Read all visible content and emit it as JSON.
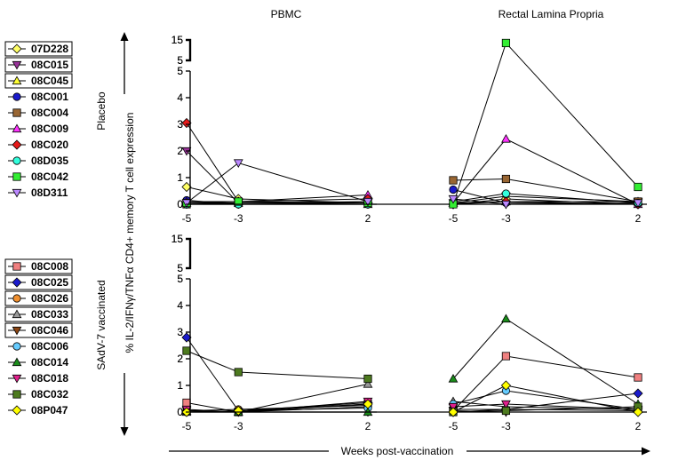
{
  "figure": {
    "ylabel": "% IL-2/IFNγ/TNFα CD4+ memory T cell expression",
    "xlabel": "Weeks post-vaccination",
    "col_titles": [
      "PBMC",
      "Rectal Lamina Propria"
    ],
    "row_labels": [
      "Placebo",
      "SAdV-7 vaccinated"
    ]
  },
  "chart_data": [
    {
      "type": "line",
      "panel": "PBMC / Placebo",
      "title": "PBMC",
      "group": "Placebo",
      "x": [
        -5,
        -3,
        2
      ],
      "x_tick_labels": [
        "-5",
        "-3",
        "2"
      ],
      "y_ticks": [
        0,
        1,
        2,
        3,
        4,
        5
      ],
      "y_break_ticks": [
        5,
        15
      ],
      "ylim": [
        0,
        15
      ],
      "series": [
        {
          "name": "07D228",
          "values": [
            0.65,
            0.2,
            0.05
          ]
        },
        {
          "name": "08C015",
          "values": [
            2.0,
            0.05,
            0.1
          ]
        },
        {
          "name": "08C045",
          "values": [
            0.05,
            0.05,
            0.0
          ]
        },
        {
          "name": "08C001",
          "values": [
            0.15,
            0.0,
            0.0
          ]
        },
        {
          "name": "08C004",
          "values": [
            0.0,
            0.05,
            0.05
          ]
        },
        {
          "name": "08C009",
          "values": [
            0.1,
            0.1,
            0.35
          ]
        },
        {
          "name": "08C020",
          "values": [
            3.05,
            0.1,
            0.2
          ]
        },
        {
          "name": "08D035",
          "values": [
            0.0,
            0.0,
            0.0
          ]
        },
        {
          "name": "08C042",
          "values": [
            0.05,
            0.1,
            0.05
          ]
        },
        {
          "name": "08D311",
          "values": [
            0.05,
            1.55,
            0.1
          ]
        }
      ]
    },
    {
      "type": "line",
      "panel": "Rectal Lamina Propria / Placebo",
      "title": "Rectal Lamina Propria",
      "group": "Placebo",
      "x": [
        -5,
        -3,
        2
      ],
      "x_tick_labels": [
        "-5",
        "-3",
        "2"
      ],
      "y_ticks": [
        0,
        1,
        2,
        3,
        4,
        5
      ],
      "y_break_ticks": [
        5,
        15
      ],
      "ylim": [
        0,
        15
      ],
      "series": [
        {
          "name": "07D228",
          "values": [
            0.0,
            0.2,
            0.0
          ]
        },
        {
          "name": "08C015",
          "values": [
            0.05,
            0.3,
            0.1
          ]
        },
        {
          "name": "08C045",
          "values": [
            0.05,
            0.1,
            0.1
          ]
        },
        {
          "name": "08C001",
          "values": [
            0.55,
            0.05,
            0.0
          ]
        },
        {
          "name": "08C004",
          "values": [
            0.9,
            0.95,
            0.1
          ]
        },
        {
          "name": "08C009",
          "values": [
            0.05,
            2.45,
            0.0
          ]
        },
        {
          "name": "08C020",
          "values": [
            0.0,
            0.1,
            0.0
          ]
        },
        {
          "name": "08D035",
          "values": [
            0.1,
            0.4,
            0.05
          ]
        },
        {
          "name": "08C042",
          "values": [
            0.0,
            13.5,
            0.65
          ]
        },
        {
          "name": "08D311",
          "values": [
            0.2,
            0.0,
            0.05
          ]
        }
      ]
    },
    {
      "type": "line",
      "panel": "PBMC / SAdV-7 vaccinated",
      "title": "",
      "group": "SAdV-7 vaccinated",
      "x": [
        -5,
        -3,
        2
      ],
      "x_tick_labels": [
        "-5",
        "-3",
        "2"
      ],
      "y_ticks": [
        0,
        1,
        2,
        3,
        4,
        5
      ],
      "y_break_ticks": [
        5,
        15
      ],
      "ylim": [
        0,
        15
      ],
      "series": [
        {
          "name": "08C008",
          "values": [
            0.35,
            0.0,
            0.3
          ]
        },
        {
          "name": "08C025",
          "values": [
            2.8,
            0.05,
            0.35
          ]
        },
        {
          "name": "08C026",
          "values": [
            0.05,
            0.1,
            0.25
          ]
        },
        {
          "name": "08C033",
          "values": [
            0.0,
            0.0,
            1.05
          ]
        },
        {
          "name": "08C046",
          "values": [
            0.05,
            0.0,
            0.2
          ]
        },
        {
          "name": "08C006",
          "values": [
            0.0,
            0.05,
            0.15
          ]
        },
        {
          "name": "08C014",
          "values": [
            0.05,
            0.0,
            0.0
          ]
        },
        {
          "name": "08C018",
          "values": [
            0.1,
            0.0,
            0.4
          ]
        },
        {
          "name": "08C032",
          "values": [
            2.3,
            1.5,
            1.25
          ]
        },
        {
          "name": "08P047",
          "values": [
            0.0,
            0.05,
            0.3
          ]
        }
      ]
    },
    {
      "type": "line",
      "panel": "Rectal Lamina Propria / SAdV-7 vaccinated",
      "title": "",
      "group": "SAdV-7 vaccinated",
      "x": [
        -5,
        -3,
        2
      ],
      "x_tick_labels": [
        "-5",
        "-3",
        "2"
      ],
      "y_ticks": [
        0,
        1,
        2,
        3,
        4,
        5
      ],
      "y_break_ticks": [
        5,
        15
      ],
      "ylim": [
        0,
        15
      ],
      "series": [
        {
          "name": "08C008",
          "values": [
            0.05,
            2.1,
            1.3
          ]
        },
        {
          "name": "08C025",
          "values": [
            0.0,
            0.1,
            0.7
          ]
        },
        {
          "name": "08C026",
          "values": [
            0.1,
            0.1,
            0.05
          ]
        },
        {
          "name": "08C033",
          "values": [
            0.4,
            0.2,
            0.1
          ]
        },
        {
          "name": "08C046",
          "values": [
            0.05,
            0.0,
            0.0
          ]
        },
        {
          "name": "08C006",
          "values": [
            0.3,
            0.8,
            0.1
          ]
        },
        {
          "name": "08C014",
          "values": [
            1.25,
            3.5,
            0.3
          ]
        },
        {
          "name": "08C018",
          "values": [
            0.2,
            0.3,
            0.1
          ]
        },
        {
          "name": "08C032",
          "values": [
            0.0,
            0.05,
            0.2
          ]
        },
        {
          "name": "08P047",
          "values": [
            0.0,
            1.0,
            0.0
          ]
        }
      ]
    }
  ],
  "legends": [
    {
      "group": "Placebo",
      "entries": [
        {
          "name": "07D228",
          "color": "#ffff66",
          "marker": "diamond",
          "boxed": true
        },
        {
          "name": "08C015",
          "color": "#993399",
          "marker": "triangle-down",
          "boxed": true
        },
        {
          "name": "08C045",
          "color": "#ffff33",
          "marker": "triangle-up",
          "boxed": true
        },
        {
          "name": "08C001",
          "color": "#1a1acc",
          "marker": "circle",
          "boxed": false
        },
        {
          "name": "08C004",
          "color": "#996633",
          "marker": "square",
          "boxed": false
        },
        {
          "name": "08C009",
          "color": "#ff33ff",
          "marker": "triangle-up",
          "boxed": false
        },
        {
          "name": "08C020",
          "color": "#e61a1a",
          "marker": "diamond",
          "boxed": false
        },
        {
          "name": "08D035",
          "color": "#33ffdd",
          "marker": "circle",
          "boxed": false
        },
        {
          "name": "08C042",
          "color": "#33ee33",
          "marker": "square",
          "boxed": false
        },
        {
          "name": "08D311",
          "color": "#bb88ff",
          "marker": "triangle-down",
          "boxed": false
        }
      ]
    },
    {
      "group": "SAdV-7 vaccinated",
      "entries": [
        {
          "name": "08C008",
          "color": "#f08080",
          "marker": "square",
          "boxed": true
        },
        {
          "name": "08C025",
          "color": "#1a1acc",
          "marker": "diamond",
          "boxed": true
        },
        {
          "name": "08C026",
          "color": "#f09030",
          "marker": "circle",
          "boxed": true
        },
        {
          "name": "08C033",
          "color": "#999999",
          "marker": "triangle-up",
          "boxed": true
        },
        {
          "name": "08C046",
          "color": "#8b4513",
          "marker": "triangle-down",
          "boxed": true
        },
        {
          "name": "08C006",
          "color": "#66ccff",
          "marker": "circle",
          "boxed": false
        },
        {
          "name": "08C014",
          "color": "#1a8c1a",
          "marker": "triangle-up",
          "boxed": false
        },
        {
          "name": "08C018",
          "color": "#e0208c",
          "marker": "triangle-down",
          "boxed": false
        },
        {
          "name": "08C032",
          "color": "#4d7a1f",
          "marker": "square",
          "boxed": false
        },
        {
          "name": "08P047",
          "color": "#ffff00",
          "marker": "diamond",
          "boxed": false
        }
      ]
    }
  ]
}
